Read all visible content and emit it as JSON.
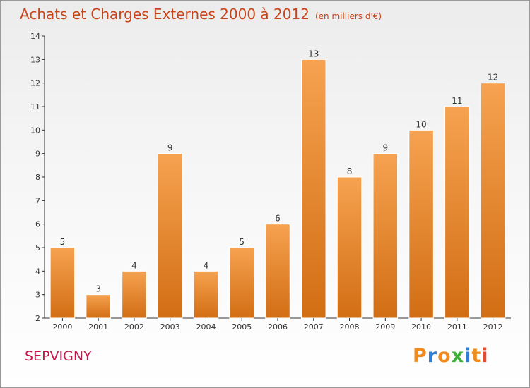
{
  "chart_data": {
    "type": "bar",
    "title": "Achats et Charges Externes 2000 à 2012",
    "subtitle": "(en milliers d'€)",
    "categories": [
      "2000",
      "2001",
      "2002",
      "2003",
      "2004",
      "2005",
      "2006",
      "2007",
      "2008",
      "2009",
      "2010",
      "2011",
      "2012"
    ],
    "values": [
      5,
      3,
      4,
      9,
      4,
      5,
      6,
      13,
      8,
      9,
      10,
      11,
      12
    ],
    "ylim": [
      2,
      14
    ],
    "yticks": [
      2,
      3,
      4,
      5,
      6,
      7,
      8,
      9,
      10,
      11,
      12,
      13,
      14
    ],
    "xlabel": "",
    "ylabel": "",
    "grid": false,
    "bar_color_top": "#f6a250",
    "bar_color_bottom": "#d26e14",
    "title_color": "#c8441a"
  },
  "commune": "SEPVIGNY",
  "logo": {
    "text": "Proxiti",
    "letters": [
      "P",
      "r",
      "o",
      "x",
      "i",
      "t",
      "i"
    ],
    "colors": [
      "#f08c1e",
      "#2e7fd3",
      "#f08c1e",
      "#3fae3a",
      "#2e7fd3",
      "#f08c1e",
      "#e84a2e"
    ]
  }
}
